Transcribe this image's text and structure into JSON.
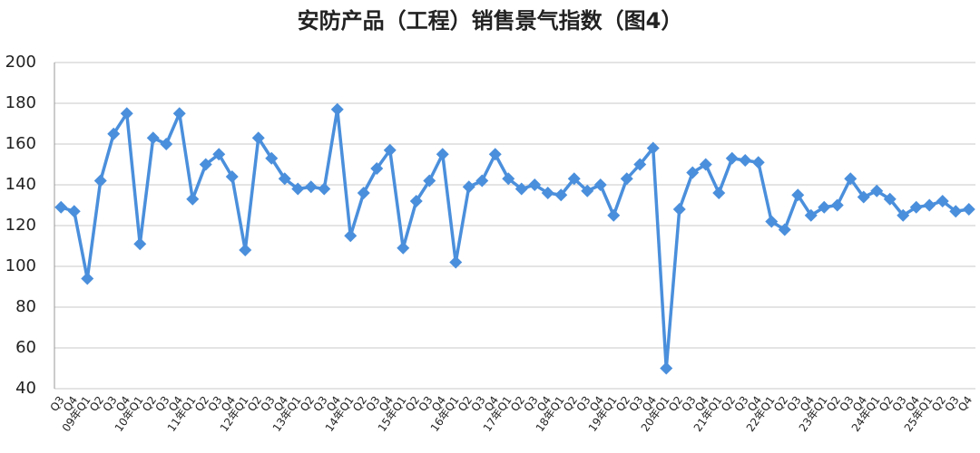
{
  "chart_data": {
    "type": "line",
    "title": "安防产品（工程）销售景气指数（图4）",
    "categories": [
      "Q3",
      "Q4",
      "09年Q1",
      "Q2",
      "Q3",
      "Q4",
      "10年Q1",
      "Q2",
      "Q3",
      "Q4",
      "11年Q1",
      "Q2",
      "Q3",
      "Q4",
      "12年Q1",
      "Q2",
      "Q3",
      "Q4",
      "13年Q1",
      "Q2",
      "Q3",
      "Q4",
      "14年Q1",
      "Q2",
      "Q3",
      "Q4",
      "15年Q1",
      "Q2",
      "Q3",
      "Q4",
      "16年Q1",
      "Q2",
      "Q3",
      "Q4",
      "17年Q1",
      "Q2",
      "Q3",
      "Q4",
      "18年Q1",
      "Q2",
      "Q3",
      "Q4",
      "19年Q1",
      "Q2",
      "Q3",
      "Q4",
      "20年Q1",
      "Q2",
      "Q3",
      "Q4",
      "21年Q1",
      "Q2",
      "Q3",
      "Q4",
      "22年Q1",
      "Q2",
      "Q3",
      "Q4",
      "23年Q1",
      "Q2",
      "Q3",
      "Q4",
      "24年Q1",
      "Q2",
      "Q3",
      "Q4",
      "25年Q1",
      "Q2",
      "Q3",
      "Q4"
    ],
    "series": [
      {
        "color": "#4a8fdc",
        "values": [
          129,
          127,
          94,
          142,
          165,
          175,
          111,
          163,
          160,
          175,
          133,
          150,
          155,
          144,
          108,
          163,
          153,
          143,
          138,
          139,
          138,
          177,
          115,
          136,
          148,
          157,
          109,
          132,
          142,
          155,
          102,
          139,
          142,
          155,
          143,
          138,
          140,
          136,
          135,
          143,
          137,
          140,
          125,
          143,
          150,
          158,
          50,
          128,
          146,
          150,
          136,
          153,
          152,
          151,
          122,
          118,
          135,
          125,
          129,
          130,
          143,
          134,
          137,
          133,
          125,
          129,
          130,
          132,
          127,
          128
        ]
      }
    ],
    "ylim": [
      40,
      200
    ],
    "yticks": [
      40,
      60,
      80,
      100,
      120,
      140,
      160,
      180,
      200
    ],
    "grid": true
  }
}
